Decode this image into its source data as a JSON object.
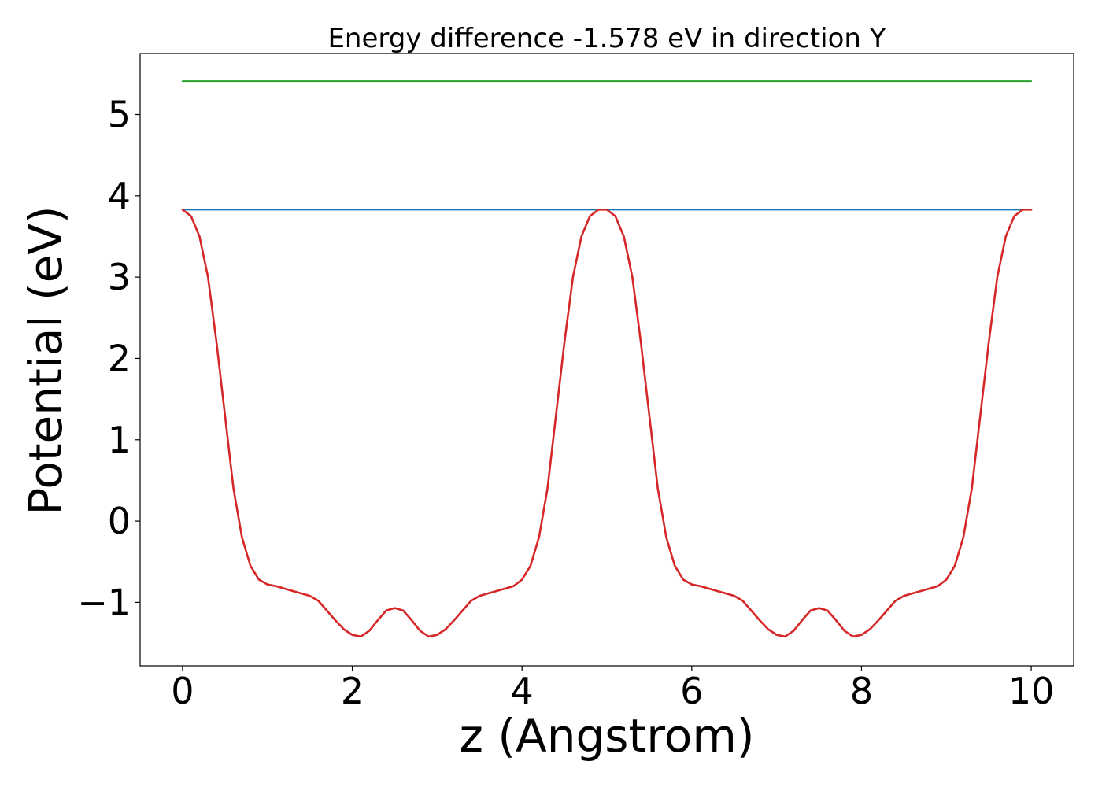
{
  "chart_data": {
    "type": "line",
    "title": "Energy difference -1.578 eV in direction Y",
    "xlabel": "z (Angstrom)",
    "ylabel": "Potential (eV)",
    "xlim": [
      -0.5,
      10.5
    ],
    "ylim": [
      -1.78,
      5.75
    ],
    "xticks": [
      0,
      2,
      4,
      6,
      8,
      10
    ],
    "xtick_labels": [
      "0",
      "2",
      "4",
      "6",
      "8",
      "10"
    ],
    "yticks": [
      -1,
      0,
      1,
      2,
      3,
      4,
      5
    ],
    "ytick_labels": [
      "−1",
      "0",
      "1",
      "2",
      "3",
      "4",
      "5"
    ],
    "grid": false,
    "series": [
      {
        "color": "#2ca02c",
        "x": [
          0,
          10
        ],
        "y": [
          5.41,
          5.41
        ]
      },
      {
        "color": "#1f77b4",
        "x": [
          0,
          10
        ],
        "y": [
          3.83,
          3.83
        ]
      },
      {
        "color": "#d62728",
        "x": [
          0,
          0.1,
          0.2,
          0.3,
          0.4,
          0.5,
          0.6,
          0.7,
          0.8,
          0.9,
          1.0,
          1.1,
          1.2,
          1.3,
          1.4,
          1.5,
          1.6,
          1.7,
          1.8,
          1.9,
          2.0,
          2.1,
          2.2,
          2.3,
          2.4,
          2.5,
          2.6,
          2.7,
          2.8,
          2.9,
          3.0,
          3.1,
          3.2,
          3.3,
          3.4,
          3.5,
          3.6,
          3.7,
          3.8,
          3.9,
          4.0,
          4.1,
          4.2,
          4.3,
          4.4,
          4.5,
          4.6,
          4.7,
          4.8,
          4.9,
          5.0,
          5.1,
          5.2,
          5.3,
          5.4,
          5.5,
          5.6,
          5.7,
          5.8,
          5.9,
          6.0,
          6.1,
          6.2,
          6.3,
          6.4,
          6.5,
          6.6,
          6.7,
          6.8,
          6.9,
          7.0,
          7.1,
          7.2,
          7.3,
          7.4,
          7.5,
          7.6,
          7.7,
          7.8,
          7.9,
          8.0,
          8.1,
          8.2,
          8.3,
          8.4,
          8.5,
          8.6,
          8.7,
          8.8,
          8.9,
          9.0,
          9.1,
          9.2,
          9.3,
          9.4,
          9.5,
          9.6,
          9.7,
          9.8,
          9.9,
          10.0
        ],
        "y": [
          3.83,
          3.75,
          3.5,
          3.0,
          2.2,
          1.3,
          0.4,
          -0.2,
          -0.55,
          -0.72,
          -0.78,
          -0.8,
          -0.83,
          -0.86,
          -0.89,
          -0.92,
          -0.98,
          -1.1,
          -1.22,
          -1.33,
          -1.4,
          -1.42,
          -1.35,
          -1.22,
          -1.1,
          -1.07,
          -1.1,
          -1.22,
          -1.35,
          -1.42,
          -1.4,
          -1.33,
          -1.22,
          -1.1,
          -0.98,
          -0.92,
          -0.89,
          -0.86,
          -0.83,
          -0.8,
          -0.72,
          -0.55,
          -0.2,
          0.4,
          1.3,
          2.2,
          3.0,
          3.5,
          3.75,
          3.83,
          3.83,
          3.75,
          3.5,
          3.0,
          2.2,
          1.3,
          0.4,
          -0.2,
          -0.55,
          -0.72,
          -0.78,
          -0.8,
          -0.83,
          -0.86,
          -0.89,
          -0.92,
          -0.98,
          -1.1,
          -1.22,
          -1.33,
          -1.4,
          -1.42,
          -1.35,
          -1.22,
          -1.1,
          -1.07,
          -1.1,
          -1.22,
          -1.35,
          -1.42,
          -1.4,
          -1.33,
          -1.22,
          -1.1,
          -0.98,
          -0.92,
          -0.89,
          -0.86,
          -0.83,
          -0.8,
          -0.72,
          -0.55,
          -0.2,
          0.4,
          1.3,
          2.2,
          3.0,
          3.5,
          3.75,
          3.83,
          3.83
        ]
      }
    ]
  }
}
